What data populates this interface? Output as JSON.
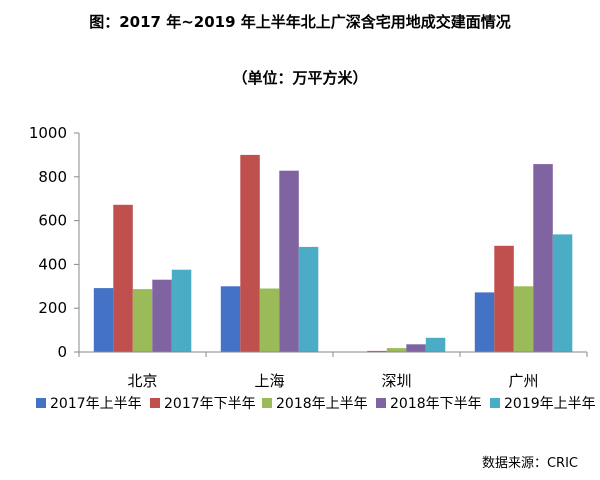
{
  "chart_data": {
    "type": "bar",
    "title": "图：2017 年~2019 年上半年北上广深含宅用地成交建面情况",
    "subtitle": "（单位：万平方米）",
    "source": "数据来源：CRIC",
    "categories": [
      "北京",
      "上海",
      "深圳",
      "广州"
    ],
    "ylim": [
      0,
      1000
    ],
    "yticks": [
      "0",
      "200",
      "400",
      "600",
      "800",
      "1000"
    ],
    "grid": false,
    "legend_position": "bottom",
    "series": [
      {
        "name": "2017年上半年",
        "color": "#4472C4",
        "values": [
          292,
          300,
          0,
          272
        ]
      },
      {
        "name": "2017年下半年",
        "color": "#C0504D",
        "values": [
          672,
          900,
          5,
          485
        ]
      },
      {
        "name": "2018年上半年",
        "color": "#9BBB59",
        "values": [
          287,
          290,
          18,
          300
        ]
      },
      {
        "name": "2018年下半年",
        "color": "#8064A2",
        "values": [
          330,
          828,
          35,
          858
        ]
      },
      {
        "name": "2019年上半年",
        "color": "#4BACC6",
        "values": [
          376,
          480,
          65,
          537
        ]
      }
    ]
  }
}
